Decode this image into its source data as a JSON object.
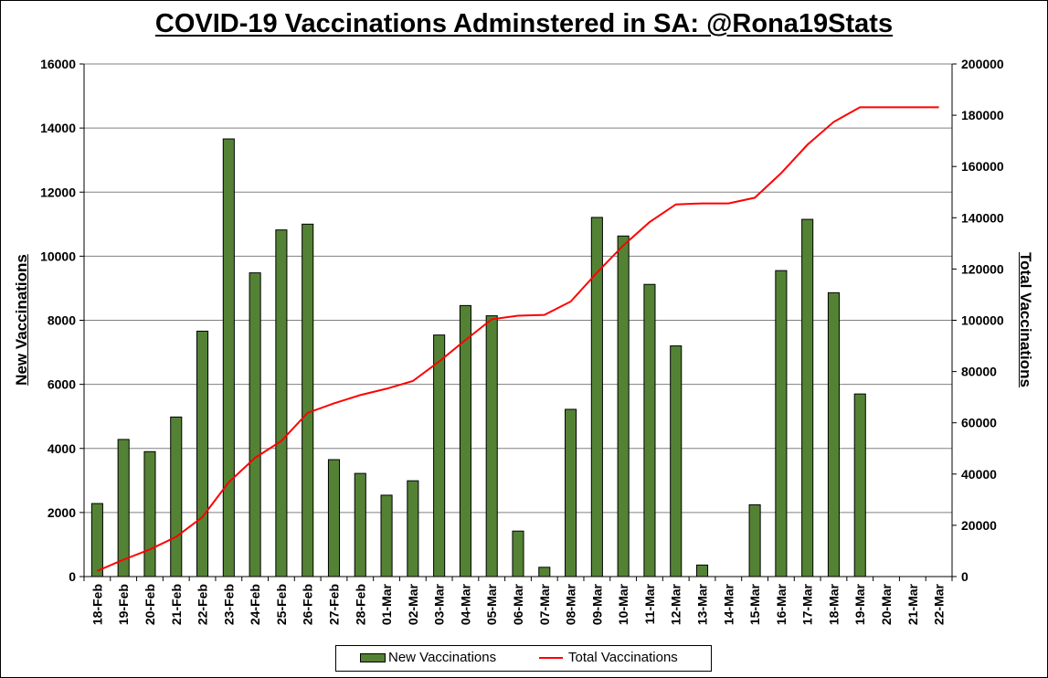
{
  "title": "COVID-19 Vaccinations Adminstered in SA: @Rona19Stats",
  "colors": {
    "bar": "#548235",
    "line": "#ff0000",
    "grid": "#808080"
  },
  "chart_data": {
    "type": "bar",
    "title": "COVID-19 Vaccinations Adminstered in SA: @Rona19Stats",
    "ylabel": "New Vaccinations",
    "y2label": "Total Vaccinations",
    "ylim": [
      0,
      16000
    ],
    "y2lim": [
      0,
      200000
    ],
    "yticks": [
      0,
      2000,
      4000,
      6000,
      8000,
      10000,
      12000,
      14000,
      16000
    ],
    "y2ticks": [
      0,
      20000,
      40000,
      60000,
      80000,
      100000,
      120000,
      140000,
      160000,
      180000,
      200000
    ],
    "grid": true,
    "legend_position": "bottom",
    "categories": [
      "18-Feb",
      "19-Feb",
      "20-Feb",
      "21-Feb",
      "22-Feb",
      "23-Feb",
      "24-Feb",
      "25-Feb",
      "26-Feb",
      "27-Feb",
      "28-Feb",
      "01-Mar",
      "02-Mar",
      "03-Mar",
      "04-Mar",
      "05-Mar",
      "06-Mar",
      "07-Mar",
      "08-Mar",
      "09-Mar",
      "10-Mar",
      "11-Mar",
      "12-Mar",
      "13-Mar",
      "14-Mar",
      "15-Mar",
      "16-Mar",
      "17-Mar",
      "18-Mar",
      "19-Mar",
      "20-Mar",
      "21-Mar",
      "22-Mar"
    ],
    "series": [
      {
        "name": "New Vaccinations",
        "type": "bar",
        "axis": "left",
        "values": [
          2280,
          4280,
          3900,
          4980,
          7660,
          13660,
          9480,
          10820,
          11000,
          3650,
          3220,
          2540,
          2990,
          7540,
          8460,
          8140,
          1420,
          290,
          5220,
          11210,
          10630,
          9120,
          7200,
          360,
          0,
          2240,
          9550,
          11150,
          8860,
          5700,
          0,
          0,
          0
        ]
      },
      {
        "name": "Total Vaccinations",
        "type": "line",
        "axis": "right",
        "values": [
          2200,
          6600,
          10600,
          15500,
          23200,
          36800,
          46300,
          52900,
          63900,
          67600,
          70800,
          73300,
          76300,
          83900,
          92300,
          100400,
          101800,
          102100,
          107300,
          118600,
          129200,
          138300,
          145200,
          145600,
          145600,
          147800,
          157400,
          168500,
          177400,
          183100,
          183100,
          183100,
          183100
        ]
      }
    ]
  }
}
